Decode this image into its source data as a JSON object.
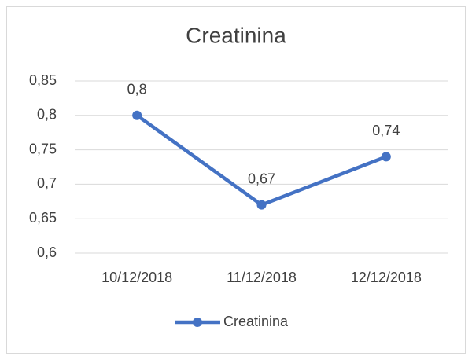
{
  "chart_data": {
    "type": "line",
    "title": "Creatinina",
    "categories": [
      "10/12/2018",
      "11/12/2018",
      "12/12/2018"
    ],
    "series": [
      {
        "name": "Creatinina",
        "color": "#4472c4",
        "values": [
          0.8,
          0.67,
          0.74
        ],
        "value_labels": [
          "0,8",
          "0,67",
          "0,74"
        ]
      }
    ],
    "ylim": [
      0.6,
      0.85
    ],
    "yticks": [
      {
        "value": 0.6,
        "label": "0,6"
      },
      {
        "value": 0.65,
        "label": "0,65"
      },
      {
        "value": 0.7,
        "label": "0,7"
      },
      {
        "value": 0.75,
        "label": "0,75"
      },
      {
        "value": 0.8,
        "label": "0,8"
      },
      {
        "value": 0.85,
        "label": "0,85"
      }
    ],
    "grid": true,
    "legend": "bottom"
  }
}
